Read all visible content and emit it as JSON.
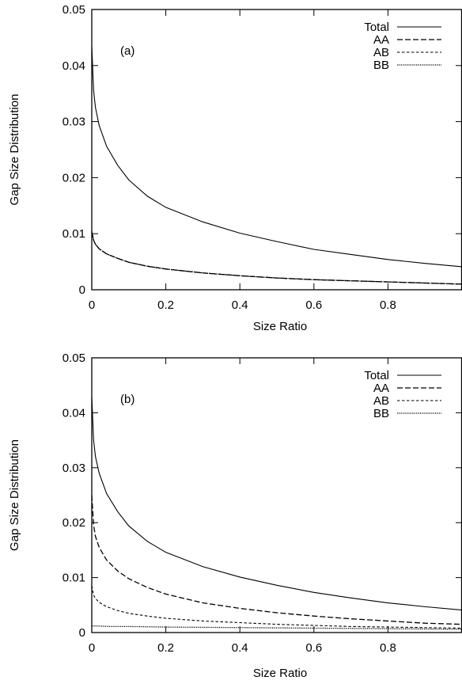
{
  "chart_data": [
    {
      "type": "line",
      "panel_label": "(a)",
      "xlabel": "Size Ratio",
      "ylabel": "Gap Size Distribution",
      "xlim": [
        0,
        1
      ],
      "ylim": [
        0,
        0.05
      ],
      "x_ticks": [
        "0",
        "0.2",
        "0.4",
        "0.6",
        "0.8"
      ],
      "y_ticks": [
        "0",
        "0.01",
        "0.02",
        "0.03",
        "0.04",
        "0.05"
      ],
      "grid": false,
      "legend_position": "top-right",
      "series": [
        {
          "name": "Total",
          "style": "solid",
          "x": [
            0,
            0.005,
            0.01,
            0.02,
            0.04,
            0.07,
            0.1,
            0.15,
            0.2,
            0.3,
            0.4,
            0.5,
            0.6,
            0.7,
            0.8,
            0.9,
            1.0
          ],
          "y": [
            0.0435,
            0.0355,
            0.0325,
            0.0293,
            0.0256,
            0.0222,
            0.0196,
            0.0167,
            0.0147,
            0.0121,
            0.0101,
            0.0086,
            0.0072,
            0.0063,
            0.0054,
            0.0047,
            0.0041
          ]
        },
        {
          "name": "AA",
          "style": "dashed",
          "x": [
            0,
            0.005,
            0.01,
            0.02,
            0.04,
            0.07,
            0.1,
            0.15,
            0.2,
            0.3,
            0.4,
            0.5,
            0.6,
            0.7,
            0.8,
            0.9,
            1.0
          ],
          "y": [
            0.0104,
            0.0088,
            0.0081,
            0.0073,
            0.0064,
            0.0056,
            0.0049,
            0.0042,
            0.0037,
            0.003,
            0.0025,
            0.0021,
            0.0018,
            0.0016,
            0.0014,
            0.0012,
            0.001
          ]
        },
        {
          "name": "AB",
          "style": "short-dashed",
          "x": [
            0,
            0.005,
            0.01,
            0.02,
            0.04,
            0.07,
            0.1,
            0.15,
            0.2,
            0.3,
            0.4,
            0.5,
            0.6,
            0.7,
            0.8,
            0.9,
            1.0
          ],
          "y": [
            0.0104,
            0.0088,
            0.0081,
            0.0073,
            0.0064,
            0.0056,
            0.0049,
            0.0042,
            0.0037,
            0.003,
            0.0025,
            0.0021,
            0.0018,
            0.0016,
            0.0014,
            0.0012,
            0.001
          ]
        },
        {
          "name": "BB",
          "style": "dotted",
          "x": [
            0,
            0.005,
            0.01,
            0.02,
            0.04,
            0.07,
            0.1,
            0.15,
            0.2,
            0.3,
            0.4,
            0.5,
            0.6,
            0.7,
            0.8,
            0.9,
            1.0
          ],
          "y": [
            0.0104,
            0.0088,
            0.0081,
            0.0073,
            0.0064,
            0.0056,
            0.0049,
            0.0042,
            0.0037,
            0.003,
            0.0025,
            0.0021,
            0.0018,
            0.0016,
            0.0014,
            0.0012,
            0.001
          ]
        }
      ]
    },
    {
      "type": "line",
      "panel_label": "(b)",
      "xlabel": "Size Ratio",
      "ylabel": "Gap Size Distribution",
      "xlim": [
        0,
        1
      ],
      "ylim": [
        0,
        0.05
      ],
      "x_ticks": [
        "0",
        "0.2",
        "0.4",
        "0.6",
        "0.8"
      ],
      "y_ticks": [
        "0",
        "0.01",
        "0.02",
        "0.03",
        "0.04",
        "0.05"
      ],
      "grid": false,
      "legend_position": "top-right",
      "series": [
        {
          "name": "Total",
          "style": "solid",
          "x": [
            0,
            0.005,
            0.01,
            0.02,
            0.04,
            0.07,
            0.1,
            0.15,
            0.2,
            0.3,
            0.4,
            0.5,
            0.6,
            0.7,
            0.8,
            0.9,
            1.0
          ],
          "y": [
            0.043,
            0.035,
            0.032,
            0.029,
            0.0253,
            0.022,
            0.0194,
            0.0166,
            0.0146,
            0.012,
            0.0101,
            0.0086,
            0.0073,
            0.0063,
            0.0054,
            0.0047,
            0.0041
          ]
        },
        {
          "name": "AA",
          "style": "dashed",
          "x": [
            0,
            0.005,
            0.01,
            0.02,
            0.04,
            0.07,
            0.1,
            0.15,
            0.2,
            0.3,
            0.4,
            0.5,
            0.6,
            0.7,
            0.8,
            0.9,
            1.0
          ],
          "y": [
            0.025,
            0.0195,
            0.0175,
            0.0155,
            0.0132,
            0.0112,
            0.0098,
            0.0082,
            0.007,
            0.0054,
            0.0044,
            0.0036,
            0.003,
            0.0025,
            0.0021,
            0.0017,
            0.0015
          ]
        },
        {
          "name": "AB",
          "style": "short-dashed",
          "x": [
            0,
            0.005,
            0.01,
            0.02,
            0.04,
            0.07,
            0.1,
            0.15,
            0.2,
            0.3,
            0.4,
            0.5,
            0.6,
            0.7,
            0.8,
            0.9,
            1.0
          ],
          "y": [
            0.0085,
            0.0068,
            0.0062,
            0.0055,
            0.0047,
            0.004,
            0.0035,
            0.003,
            0.0026,
            0.0021,
            0.0018,
            0.0015,
            0.0013,
            0.0011,
            0.001,
            0.0009,
            0.0008
          ]
        },
        {
          "name": "BB",
          "style": "dotted",
          "x": [
            0,
            0.01,
            0.05,
            0.1,
            0.2,
            0.3,
            0.4,
            0.5,
            0.6,
            0.7,
            0.8,
            0.9,
            1.0
          ],
          "y": [
            0.0012,
            0.0012,
            0.0011,
            0.0011,
            0.001,
            0.00095,
            0.0009,
            0.00085,
            0.0008,
            0.00075,
            0.0007,
            0.00065,
            0.0006
          ]
        }
      ]
    }
  ]
}
